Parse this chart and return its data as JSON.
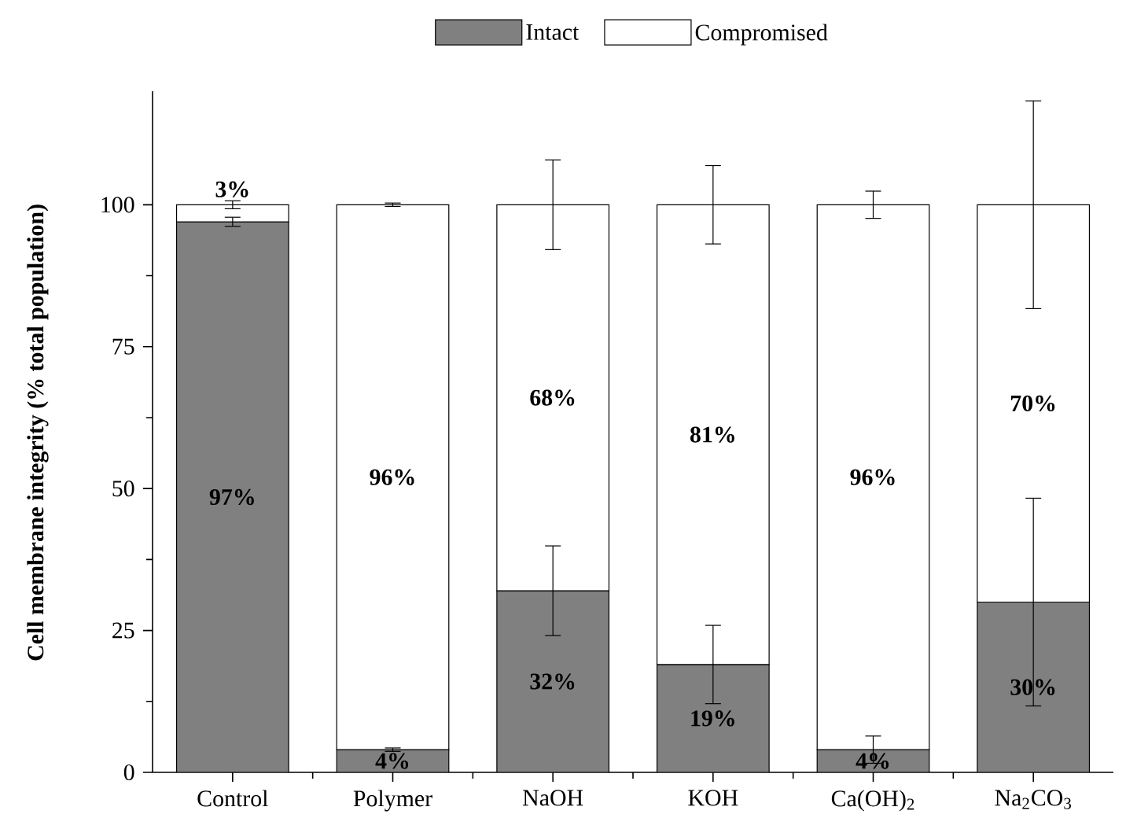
{
  "chart_data": {
    "type": "bar",
    "stacked": true,
    "categories": [
      "Control",
      "Polymer",
      "NaOH",
      "KOH",
      "Ca(OH)$_{2}$",
      "Na$_{2}$CO$_{3}$"
    ],
    "ylabel": "Cell membrane integrity (% total population)",
    "ylim": [
      0,
      120
    ],
    "yticks": [
      0,
      25,
      50,
      75,
      100
    ],
    "legend": "top",
    "series": [
      {
        "name": "Intact",
        "color": "#808080",
        "values": [
          97,
          4,
          32,
          19,
          4,
          30
        ],
        "errors": [
          0.8,
          0.3,
          7.9,
          6.9,
          2.4,
          18.3
        ],
        "value_labels": [
          "97%",
          "4%",
          "32%",
          "19%",
          "4%",
          "30%"
        ]
      },
      {
        "name": "Compromised",
        "color": "#ffffff",
        "values": [
          3,
          96,
          68,
          81,
          96,
          70
        ],
        "errors": [
          0.7,
          0.3,
          7.9,
          6.9,
          2.4,
          18.3
        ],
        "value_labels": [
          "3%",
          "96%",
          "68%",
          "81%",
          "96%",
          "70%"
        ]
      }
    ]
  }
}
